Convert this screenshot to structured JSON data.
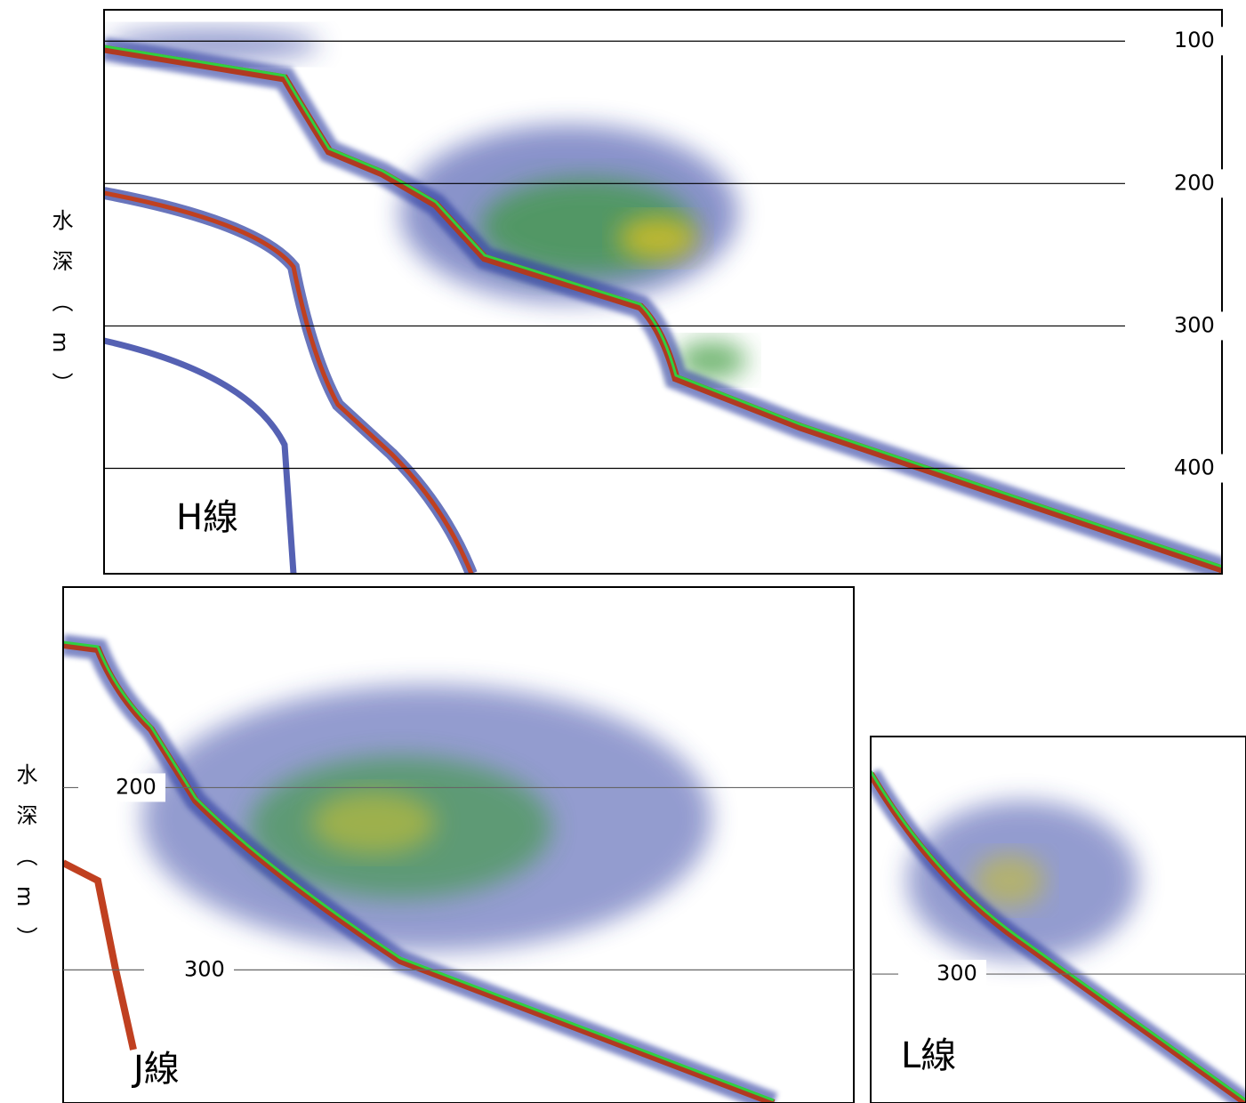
{
  "panels": [
    {
      "label": "H線",
      "ylabel": "水深（m）",
      "ylim": [
        78,
        474
      ],
      "yticks": [
        100,
        200,
        300,
        400
      ]
    },
    {
      "label": "J線",
      "ylabel": "水深（m）",
      "ylim": [
        90,
        373
      ],
      "yticks": [
        200,
        300
      ]
    },
    {
      "label": "L線",
      "ylabel": null,
      "ylim": [
        171,
        370
      ],
      "yticks": [
        300
      ]
    }
  ]
}
